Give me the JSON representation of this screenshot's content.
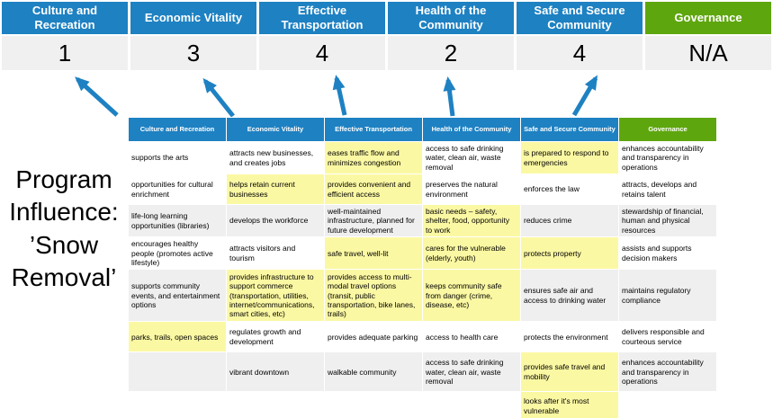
{
  "colors": {
    "blue": "#1E81C2",
    "green": "#5EA60E",
    "yellow": "#FBF8A3",
    "gray": "#EFEFEF",
    "white": "#FFFFFF",
    "score_bg": "#F0F0F0",
    "arrow": "#1E81C2"
  },
  "program_label": {
    "lines": [
      "Program",
      "Influence:",
      "’Snow",
      "Removal’"
    ]
  },
  "summary": {
    "columns": [
      {
        "label": "Culture and Recreation",
        "score": "1",
        "header_color": "blue"
      },
      {
        "label": "Economic Vitality",
        "score": "3",
        "header_color": "blue"
      },
      {
        "label": "Effective Transportation",
        "score": "4",
        "header_color": "blue"
      },
      {
        "label": "Health of the Community",
        "score": "2",
        "header_color": "blue"
      },
      {
        "label": "Safe and Secure Community",
        "score": "4",
        "header_color": "blue"
      },
      {
        "label": "Governance",
        "score": "N/A",
        "header_color": "green"
      }
    ]
  },
  "matrix": {
    "headers": [
      {
        "label": "Culture and Recreation",
        "color": "blue"
      },
      {
        "label": "Economic Vitality",
        "color": "blue"
      },
      {
        "label": "Effective Transportation",
        "color": "blue"
      },
      {
        "label": "Health of the Community",
        "color": "blue"
      },
      {
        "label": "Safe and Secure Community",
        "color": "blue"
      },
      {
        "label": "Governance",
        "color": "green"
      }
    ],
    "rows": [
      {
        "cells": [
          {
            "text": "supports the arts",
            "bg": "white"
          },
          {
            "text": "attracts new businesses, and creates jobs",
            "bg": "white"
          },
          {
            "text": "eases traffic flow and minimizes congestion",
            "bg": "yellow"
          },
          {
            "text": "access to safe drinking water, clean air, waste removal",
            "bg": "white"
          },
          {
            "text": "is prepared to respond to emergencies",
            "bg": "yellow"
          },
          {
            "text": "enhances accountability and transparency in operations",
            "bg": "white"
          }
        ]
      },
      {
        "cells": [
          {
            "text": "opportunities for cultural enrichment",
            "bg": "white"
          },
          {
            "text": "helps retain current businesses",
            "bg": "yellow"
          },
          {
            "text": "provides convenient and efficient access",
            "bg": "yellow"
          },
          {
            "text": "preserves the natural environment",
            "bg": "white"
          },
          {
            "text": "enforces the law",
            "bg": "white"
          },
          {
            "text": "attracts, develops and retains talent",
            "bg": "white"
          }
        ]
      },
      {
        "cells": [
          {
            "text": "life-long learning opportunities (libraries)",
            "bg": "gray"
          },
          {
            "text": "develops the workforce",
            "bg": "gray"
          },
          {
            "text": "well-maintained infrastructure, planned for future development",
            "bg": "gray"
          },
          {
            "text": "basic needs – safety, shelter, food, opportunity to work",
            "bg": "yellow"
          },
          {
            "text": "reduces crime",
            "bg": "gray"
          },
          {
            "text": "stewardship of financial, human and physical resources",
            "bg": "gray"
          }
        ]
      },
      {
        "cells": [
          {
            "text": "encourages healthy people (promotes active lifestyle)",
            "bg": "white"
          },
          {
            "text": "attracts visitors and tourism",
            "bg": "white"
          },
          {
            "text": "safe travel, well-lit",
            "bg": "yellow"
          },
          {
            "text": "cares for the vulnerable (elderly, youth)",
            "bg": "yellow"
          },
          {
            "text": "protects property",
            "bg": "yellow"
          },
          {
            "text": "assists and supports decision makers",
            "bg": "white"
          }
        ]
      },
      {
        "cells": [
          {
            "text": "supports community events, and entertainment options",
            "bg": "gray"
          },
          {
            "text": "provides infrastructure to support commerce (transportation, utilities, internet/communications, smart cities, etc)",
            "bg": "yellow"
          },
          {
            "text": "provides access to multi-modal travel options (transit, public transportation, bike lanes, trails)",
            "bg": "yellow"
          },
          {
            "text": "keeps community safe from danger (crime, disease, etc)",
            "bg": "yellow"
          },
          {
            "text": "ensures safe air and access to drinking water",
            "bg": "gray"
          },
          {
            "text": "maintains regulatory compliance",
            "bg": "gray"
          }
        ]
      },
      {
        "cells": [
          {
            "text": "parks, trails, open spaces",
            "bg": "yellow"
          },
          {
            "text": "regulates growth and development",
            "bg": "white"
          },
          {
            "text": "provides adequate parking",
            "bg": "white"
          },
          {
            "text": "access to health care",
            "bg": "white"
          },
          {
            "text": "protects the environment",
            "bg": "white"
          },
          {
            "text": "delivers responsible and courteous service",
            "bg": "white"
          }
        ]
      },
      {
        "cells": [
          {
            "text": "",
            "bg": "gray"
          },
          {
            "text": "vibrant downtown",
            "bg": "gray"
          },
          {
            "text": "walkable community",
            "bg": "gray"
          },
          {
            "text": "access to safe drinking water, clean air, waste removal",
            "bg": "gray"
          },
          {
            "text": "provides safe travel and mobility",
            "bg": "yellow"
          },
          {
            "text": "enhances accountability and transparency in operations",
            "bg": "gray"
          }
        ]
      },
      {
        "cells": [
          {
            "text": "",
            "bg": "white"
          },
          {
            "text": "",
            "bg": "white"
          },
          {
            "text": "",
            "bg": "white"
          },
          {
            "text": "",
            "bg": "white"
          },
          {
            "text": "looks after it's most vulnerable",
            "bg": "yellow"
          },
          {
            "text": "",
            "bg": "white"
          }
        ]
      }
    ]
  }
}
